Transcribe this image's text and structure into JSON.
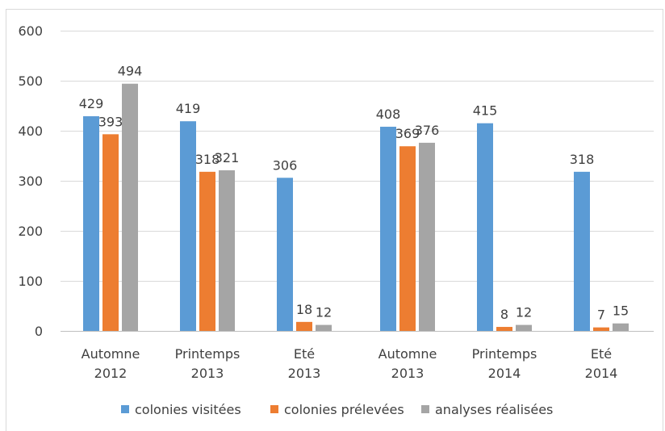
{
  "colors": {
    "colonies_visitees": "#5B9BD5",
    "colonies_prelevees": "#ED7D31",
    "analyses_realisees": "#A5A5A5",
    "gridline": "#D9D9D9",
    "axis": "#BFBFBF",
    "text": "#404040",
    "frame": "#D9D9D9"
  },
  "chart_data": {
    "type": "bar",
    "title": "",
    "xlabel": "",
    "ylabel": "",
    "ylim": [
      0,
      600
    ],
    "yticks": [
      0,
      100,
      200,
      300,
      400,
      500,
      600
    ],
    "grid": true,
    "legend_position": "bottom",
    "categories": [
      [
        "Automne",
        "2012"
      ],
      [
        "Printemps",
        "2013"
      ],
      [
        "Eté",
        "2013"
      ],
      [
        "Automne",
        "2013"
      ],
      [
        "Printemps",
        "2014"
      ],
      [
        "Eté",
        "2014"
      ]
    ],
    "series": [
      {
        "name": "colonies visitées",
        "color": "#5B9BD5",
        "values": [
          429,
          419,
          306,
          408,
          415,
          318
        ]
      },
      {
        "name": "colonies prélevées",
        "color": "#ED7D31",
        "values": [
          393,
          318,
          18,
          369,
          8,
          7
        ]
      },
      {
        "name": "analyses réalisées",
        "color": "#A5A5A5",
        "values": [
          494,
          321,
          12,
          376,
          12,
          15
        ]
      }
    ]
  }
}
